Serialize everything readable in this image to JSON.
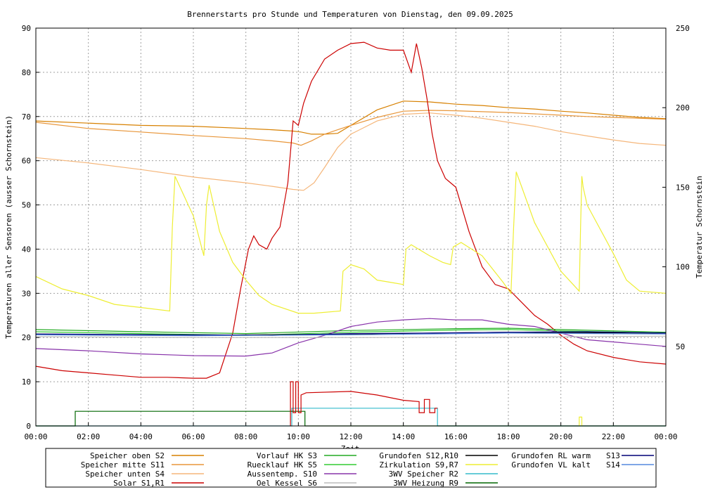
{
  "chart_data": {
    "type": "line",
    "title": "Brennerstarts pro Stunde und Temperaturen von Dienstag, den 09.09.2025",
    "xlabel": "Zeit",
    "ylabel": "Temperaturen aller Sensoren (ausser Schornstein)",
    "y2label": "Temperatur Schornstein",
    "xlim": [
      0,
      24
    ],
    "ylim": [
      0,
      90
    ],
    "y2lim": [
      0,
      250
    ],
    "grid": true,
    "x_ticks": [
      "00:00",
      "02:00",
      "04:00",
      "06:00",
      "08:00",
      "10:00",
      "12:00",
      "14:00",
      "16:00",
      "18:00",
      "20:00",
      "22:00",
      "00:00"
    ],
    "y_ticks": [
      "0",
      "10",
      "20",
      "30",
      "40",
      "50",
      "60",
      "70",
      "80",
      "90"
    ],
    "y2_ticks": [
      "50",
      "100",
      "150",
      "200",
      "250"
    ],
    "colors": {
      "title_y2": "#ff55ff"
    },
    "legend": [
      {
        "label": "Speicher oben  S2",
        "color": "#d78000"
      },
      {
        "label": "Speicher mitte S11",
        "color": "#e8963a"
      },
      {
        "label": "Speicher unten S4",
        "color": "#f5b67a"
      },
      {
        "label": "Solar         S1,R1",
        "color": "#cc0000"
      },
      {
        "label": "Vorlauf HK      S3",
        "color": "#22aa22"
      },
      {
        "label": "Ruecklauf HK    S5",
        "color": "#33cc33"
      },
      {
        "label": "Aussentemp.    S10",
        "color": "#8833aa"
      },
      {
        "label": "Oel Kessel      S6",
        "color": "#bbbbbb"
      },
      {
        "label": "Grundofen    S12,R10",
        "color": "#000000"
      },
      {
        "label": "Zirkulation   S9,R7",
        "color": "#eeee33"
      },
      {
        "label": "3WV Speicher     R2",
        "color": "#33bbcc"
      },
      {
        "label": "3WV Heizung   R9",
        "color": "#006600"
      },
      {
        "label": "Grundofen RL warm",
        "color": "#000077",
        "sensor": "S13"
      },
      {
        "label": "Grundofen VL kalt",
        "color": "#5588dd",
        "sensor": "S14"
      }
    ],
    "series": [
      {
        "name": "Speicher oben  S2",
        "color": "#d78000",
        "x": [
          0,
          2,
          4,
          6,
          8,
          9,
          9.8,
          10.1,
          10.5,
          11,
          11.5,
          12,
          13,
          14,
          15,
          16,
          17,
          18,
          19,
          20,
          21,
          22,
          23,
          24
        ],
        "y": [
          69,
          68.5,
          68,
          67.8,
          67.3,
          67,
          66.7,
          66.5,
          66,
          66,
          66.2,
          68,
          71.5,
          73.5,
          73.3,
          72.8,
          72.5,
          72,
          71.7,
          71.2,
          70.8,
          70.3,
          69.8,
          69.5
        ]
      },
      {
        "name": "Speicher mitte S11",
        "color": "#e8963a",
        "x": [
          0,
          2,
          4,
          6,
          8,
          9,
          9.8,
          10.1,
          10.5,
          11,
          11.5,
          12,
          13,
          14,
          15,
          16,
          17,
          18,
          19,
          20,
          21,
          22,
          23,
          24
        ],
        "y": [
          68.7,
          67.3,
          66.5,
          65.7,
          65,
          64.5,
          64,
          63.5,
          64.5,
          66,
          67,
          68,
          69.8,
          71.2,
          71.4,
          71.3,
          71.1,
          70.9,
          70.6,
          70.3,
          70,
          69.8,
          69.6,
          69.4
        ]
      },
      {
        "name": "Speicher unten S4",
        "color": "#f5b67a",
        "x": [
          0,
          2,
          4,
          6,
          8,
          9,
          9.8,
          10.2,
          10.6,
          11,
          11.5,
          12,
          13,
          14,
          15,
          16,
          17,
          18,
          19,
          20,
          21,
          22,
          23,
          24
        ],
        "y": [
          60.7,
          59.5,
          58,
          56.3,
          55,
          54.2,
          53.5,
          53.3,
          55,
          58.5,
          63,
          66,
          69,
          70.5,
          70.8,
          70.3,
          69.6,
          68.7,
          67.8,
          66.6,
          65.6,
          64.7,
          63.9,
          63.5
        ]
      },
      {
        "name": "Solar         S1,R1",
        "color": "#cc0000",
        "x": [
          0,
          1,
          2,
          3,
          4,
          5,
          6,
          6.5,
          7,
          7.5,
          7.8,
          8.1,
          8.3,
          8.5,
          8.8,
          9,
          9.3,
          9.6,
          9.8,
          10,
          10.2,
          10.5,
          11,
          11.5,
          12,
          12.5,
          13,
          13.5,
          14,
          14.3,
          14.5,
          14.7,
          14.9,
          15.1,
          15.3,
          15.6,
          16,
          16.5,
          17,
          17.5,
          18,
          18.5,
          19,
          19.5,
          20,
          20.5,
          21,
          22,
          23,
          24
        ],
        "y": [
          13.5,
          12.5,
          12,
          11.5,
          11,
          11,
          10.8,
          10.8,
          12,
          21,
          31,
          40,
          43,
          41,
          40,
          42.5,
          45,
          55,
          69,
          68,
          73,
          78,
          83,
          85,
          86.5,
          86.8,
          85.5,
          85,
          85,
          80,
          86.5,
          81,
          74,
          66,
          60,
          56,
          54,
          44,
          36,
          32,
          31,
          28,
          25,
          23,
          20.5,
          18.5,
          17,
          15.5,
          14.5,
          14
        ]
      },
      {
        "name": "Vorlauf HK      S3",
        "color": "#22aa22",
        "x": [
          0,
          4,
          8,
          12,
          16,
          18,
          20,
          24
        ],
        "y": [
          21.8,
          21.3,
          20.9,
          21.6,
          22,
          22.1,
          21.8,
          21.2
        ]
      },
      {
        "name": "Ruecklauf HK    S5",
        "color": "#33cc33",
        "x": [
          0,
          4,
          8,
          12,
          16,
          18,
          20,
          24
        ],
        "y": [
          21.3,
          20.9,
          20.5,
          21.2,
          21.7,
          21.8,
          21.5,
          21
        ]
      },
      {
        "name": "Aussentemp.    S10",
        "color": "#8833aa",
        "x": [
          0,
          2,
          4,
          6,
          8,
          9,
          10,
          11,
          12,
          13,
          14,
          15,
          16,
          17,
          18,
          19,
          20,
          21,
          22,
          23,
          24
        ],
        "y": [
          17.5,
          17,
          16.3,
          15.9,
          15.8,
          16.5,
          18.8,
          20.5,
          22.5,
          23.5,
          24,
          24.3,
          24,
          24,
          23,
          22.5,
          21,
          19.5,
          19,
          18.5,
          18
        ]
      },
      {
        "name": "Oel Kessel      S6",
        "color": "#bbbbbb",
        "x": [
          0,
          6,
          12,
          18,
          24
        ],
        "y": [
          20.2,
          20,
          20,
          20.1,
          20.3
        ]
      },
      {
        "name": "Grundofen    S12,R10",
        "color": "#000000",
        "x": [
          0,
          6,
          12,
          18,
          24
        ],
        "y": [
          20.8,
          20.5,
          20.8,
          21.2,
          21
        ]
      },
      {
        "name": "Zirkulation   S9,R7",
        "color": "#eeee33",
        "x": [
          0,
          1,
          2,
          3,
          4,
          5.1,
          5.2,
          5.3,
          6,
          6.4,
          6.5,
          6.6,
          7,
          7.5,
          8,
          8.5,
          9,
          10,
          10.6,
          11.6,
          11.7,
          12,
          12.5,
          13,
          13.5,
          14,
          14.1,
          14.3,
          15,
          15.5,
          15.8,
          15.9,
          16.2,
          17,
          17.8,
          18.1,
          18.2,
          18.3,
          19,
          20,
          20.7,
          20.75,
          20.8,
          20.85,
          21,
          22,
          22.5,
          23,
          24
        ],
        "y": [
          33.8,
          31,
          29.5,
          27.5,
          26.8,
          26,
          45,
          56.5,
          47.5,
          38.5,
          50,
          54.5,
          44,
          37,
          33,
          29.5,
          27.5,
          25.5,
          25.5,
          26,
          35,
          36.5,
          35.5,
          33,
          32.5,
          32,
          40,
          41,
          38.5,
          37,
          36.5,
          40.5,
          41.5,
          38.5,
          32.5,
          30,
          45,
          57.5,
          46,
          35,
          30.5,
          45,
          56.5,
          54,
          50,
          39,
          33,
          30.5,
          30
        ]
      },
      {
        "name": "3WV Speicher     R2",
        "color": "#33bbcc",
        "x": [
          0,
          9.75,
          9.75,
          15.3,
          15.3,
          24
        ],
        "y": [
          0,
          0,
          4,
          4,
          0,
          0
        ]
      },
      {
        "name": "3WV Heizung   R9",
        "color": "#006600",
        "x": [
          0,
          1.5,
          1.5,
          10.25,
          10.25,
          24
        ],
        "y": [
          0,
          0,
          3.3,
          3.3,
          0,
          0
        ]
      },
      {
        "name": "Grundofen RL warm",
        "color": "#000077",
        "x": [
          0,
          6,
          9,
          12,
          15,
          18,
          21,
          24
        ],
        "y": [
          20.8,
          20.6,
          20.5,
          20.9,
          21,
          21.2,
          21.3,
          21
        ]
      },
      {
        "name": "Grundofen VL kalt",
        "color": "#5588dd",
        "x": [
          0,
          6,
          12,
          18,
          24
        ],
        "y": [
          20.6,
          20.4,
          20.6,
          21,
          20.8
        ]
      }
    ],
    "burner_series": {
      "name": "Solar         S1,R1",
      "color": "#cc0000",
      "x": [
        9.7,
        9.7,
        9.8,
        9.8,
        9.9,
        9.9,
        10,
        10,
        10.1,
        10.1,
        10.3,
        12,
        13,
        14,
        14.6,
        14.6,
        14.8,
        14.8,
        15,
        15,
        15.2,
        15.2,
        15.3
      ],
      "y": [
        0,
        10,
        10,
        3,
        3,
        10,
        10,
        3,
        3,
        7,
        7.5,
        7.8,
        7,
        5.8,
        5.5,
        3,
        3,
        6,
        6,
        3,
        3,
        4,
        4
      ]
    },
    "marker": {
      "x": [
        20.7,
        20.7,
        20.8,
        20.8
      ],
      "y": [
        0,
        2,
        2,
        0
      ],
      "color": "#eeee33"
    }
  }
}
